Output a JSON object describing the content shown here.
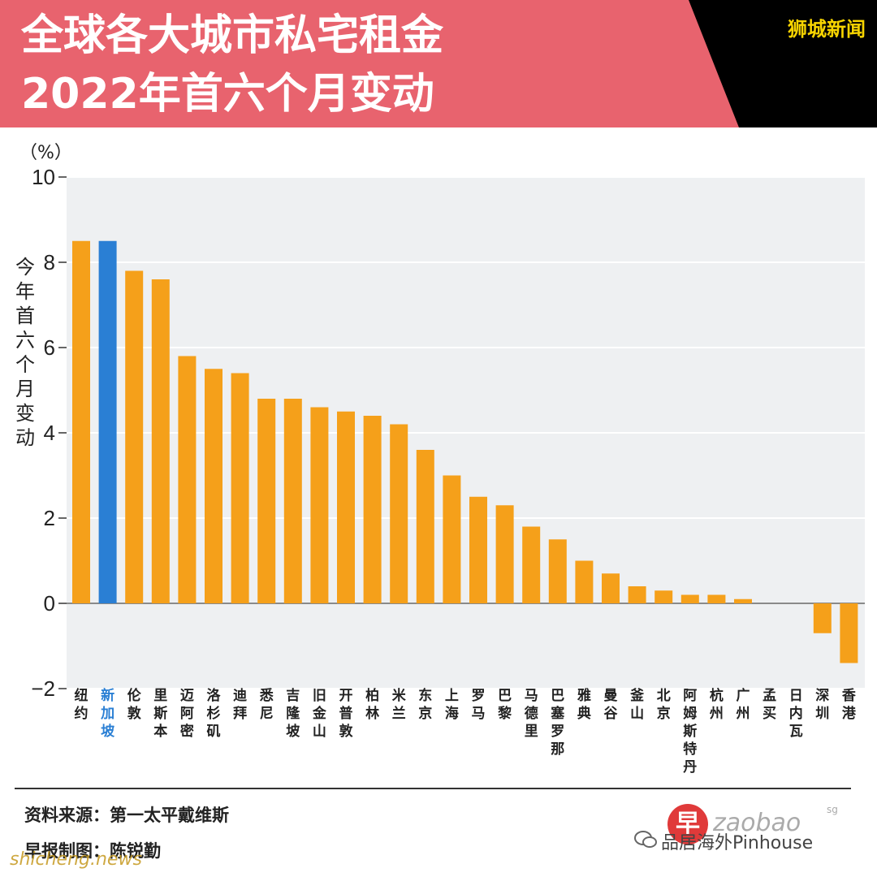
{
  "header": {
    "title_line1": "全球各大城市私宅租金",
    "title_line2": "2022年首六个月变动",
    "brand": "狮城新闻"
  },
  "axis": {
    "unit": "（%）",
    "ylabel": "今年首六个月变动"
  },
  "colors": {
    "header_bg": "#e8636e",
    "bar": "#f5a01a",
    "highlight": "#2a7fd4",
    "highlight_label": "#2a7fd4",
    "brand": "#f7d400"
  },
  "chart_data": {
    "type": "bar",
    "ylabel": "今年首六个月变动",
    "unit": "%",
    "ylim": [
      -2,
      10
    ],
    "yticks": [
      10,
      8,
      6,
      4,
      2,
      0,
      -2
    ],
    "grid": true,
    "highlight": "新加坡",
    "categories": [
      "纽约",
      "新加坡",
      "伦敦",
      "里斯本",
      "迈阿密",
      "洛杉矶",
      "迪拜",
      "悉尼",
      "吉隆坡",
      "旧金山",
      "开普敦",
      "柏林",
      "米兰",
      "东京",
      "上海",
      "罗马",
      "巴黎",
      "马德里",
      "巴塞罗那",
      "雅典",
      "曼谷",
      "釜山",
      "北京",
      "阿姆斯特丹",
      "杭州",
      "广州",
      "孟买",
      "日内瓦",
      "深圳",
      "香港"
    ],
    "values": [
      8.5,
      8.5,
      7.8,
      7.6,
      5.8,
      5.5,
      5.4,
      4.8,
      4.8,
      4.6,
      4.5,
      4.4,
      4.2,
      3.6,
      3.0,
      2.5,
      2.3,
      1.8,
      1.5,
      1.0,
      0.7,
      0.4,
      0.3,
      0.2,
      0.2,
      0.1,
      0.0,
      0.0,
      -0.7,
      -1.4
    ]
  },
  "footer": {
    "source": "资料来源：第一太平戴维斯",
    "credit": "早报制图：陈锐勤",
    "watermark": "shicheng.news",
    "logo_char": "早",
    "logo_text": "zaobao",
    "logo_sup": "sg",
    "wechat_text": "品居海外Pinhouse"
  }
}
